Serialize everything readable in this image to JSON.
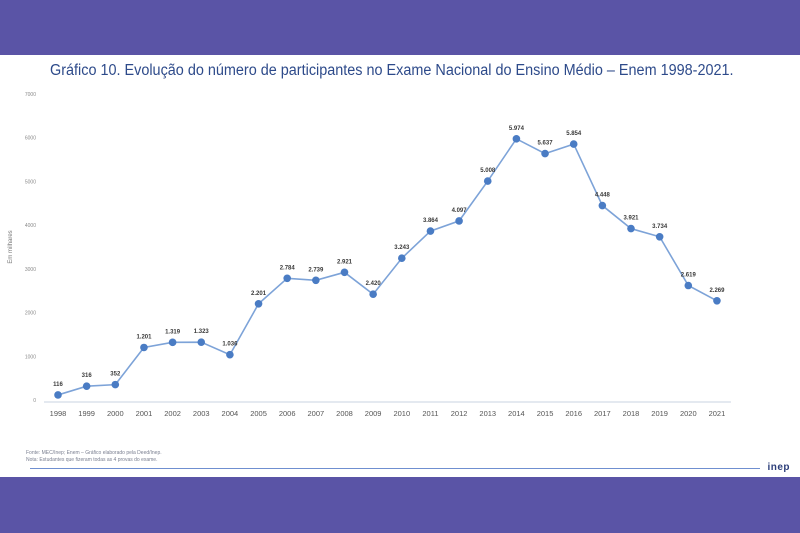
{
  "title": "Gráfico 10. Evolução do número de participantes no Exame Nacional do Ensino Médio – Enem 1998-2021.",
  "source_note": "Fonte: MEC/Inep; Enem – Gráfico elaborado pela Deed/Inep.",
  "extra_note": "Nota: Estudantes que fizeram todas as 4 provas do exame.",
  "logo": "inep",
  "colors": {
    "line": "#7da3d8",
    "marker": "#4a7cc4",
    "title": "#2d4a8a",
    "frame": "#5a54a6"
  },
  "chart_data": {
    "type": "line",
    "title": "Gráfico 10. Evolução do número de participantes no Exame Nacional do Ensino Médio – Enem 1998-2021.",
    "xlabel": "",
    "ylabel": "Em milhares",
    "ylim": [
      0,
      7000
    ],
    "yticks": [
      "0",
      "1000",
      "2000",
      "3000",
      "4000",
      "5000",
      "6000",
      "7000"
    ],
    "grid": false,
    "categories": [
      "1998",
      "1999",
      "2000",
      "2001",
      "2002",
      "2003",
      "2004",
      "2005",
      "2006",
      "2007",
      "2008",
      "2009",
      "2010",
      "2011",
      "2012",
      "2013",
      "2014",
      "2015",
      "2016",
      "2017",
      "2018",
      "2019",
      "2020",
      "2021"
    ],
    "values": [
      116,
      316,
      352,
      1201,
      1319,
      1323,
      1036,
      2201,
      2784,
      2739,
      2921,
      2420,
      3243,
      3864,
      4097,
      5008,
      5974,
      5637,
      5854,
      4448,
      3921,
      3734,
      2619,
      2269
    ],
    "labels": [
      "116",
      "316",
      "352",
      "1.201",
      "1.319",
      "1.323",
      "1.036",
      "2.201",
      "2.784",
      "2.739",
      "2.921",
      "2.420",
      "3.243",
      "3.864",
      "4.097",
      "5.008",
      "5.974",
      "5.637",
      "5.854",
      "4.448",
      "3.921",
      "3.734",
      "2.619",
      "2.269"
    ]
  }
}
